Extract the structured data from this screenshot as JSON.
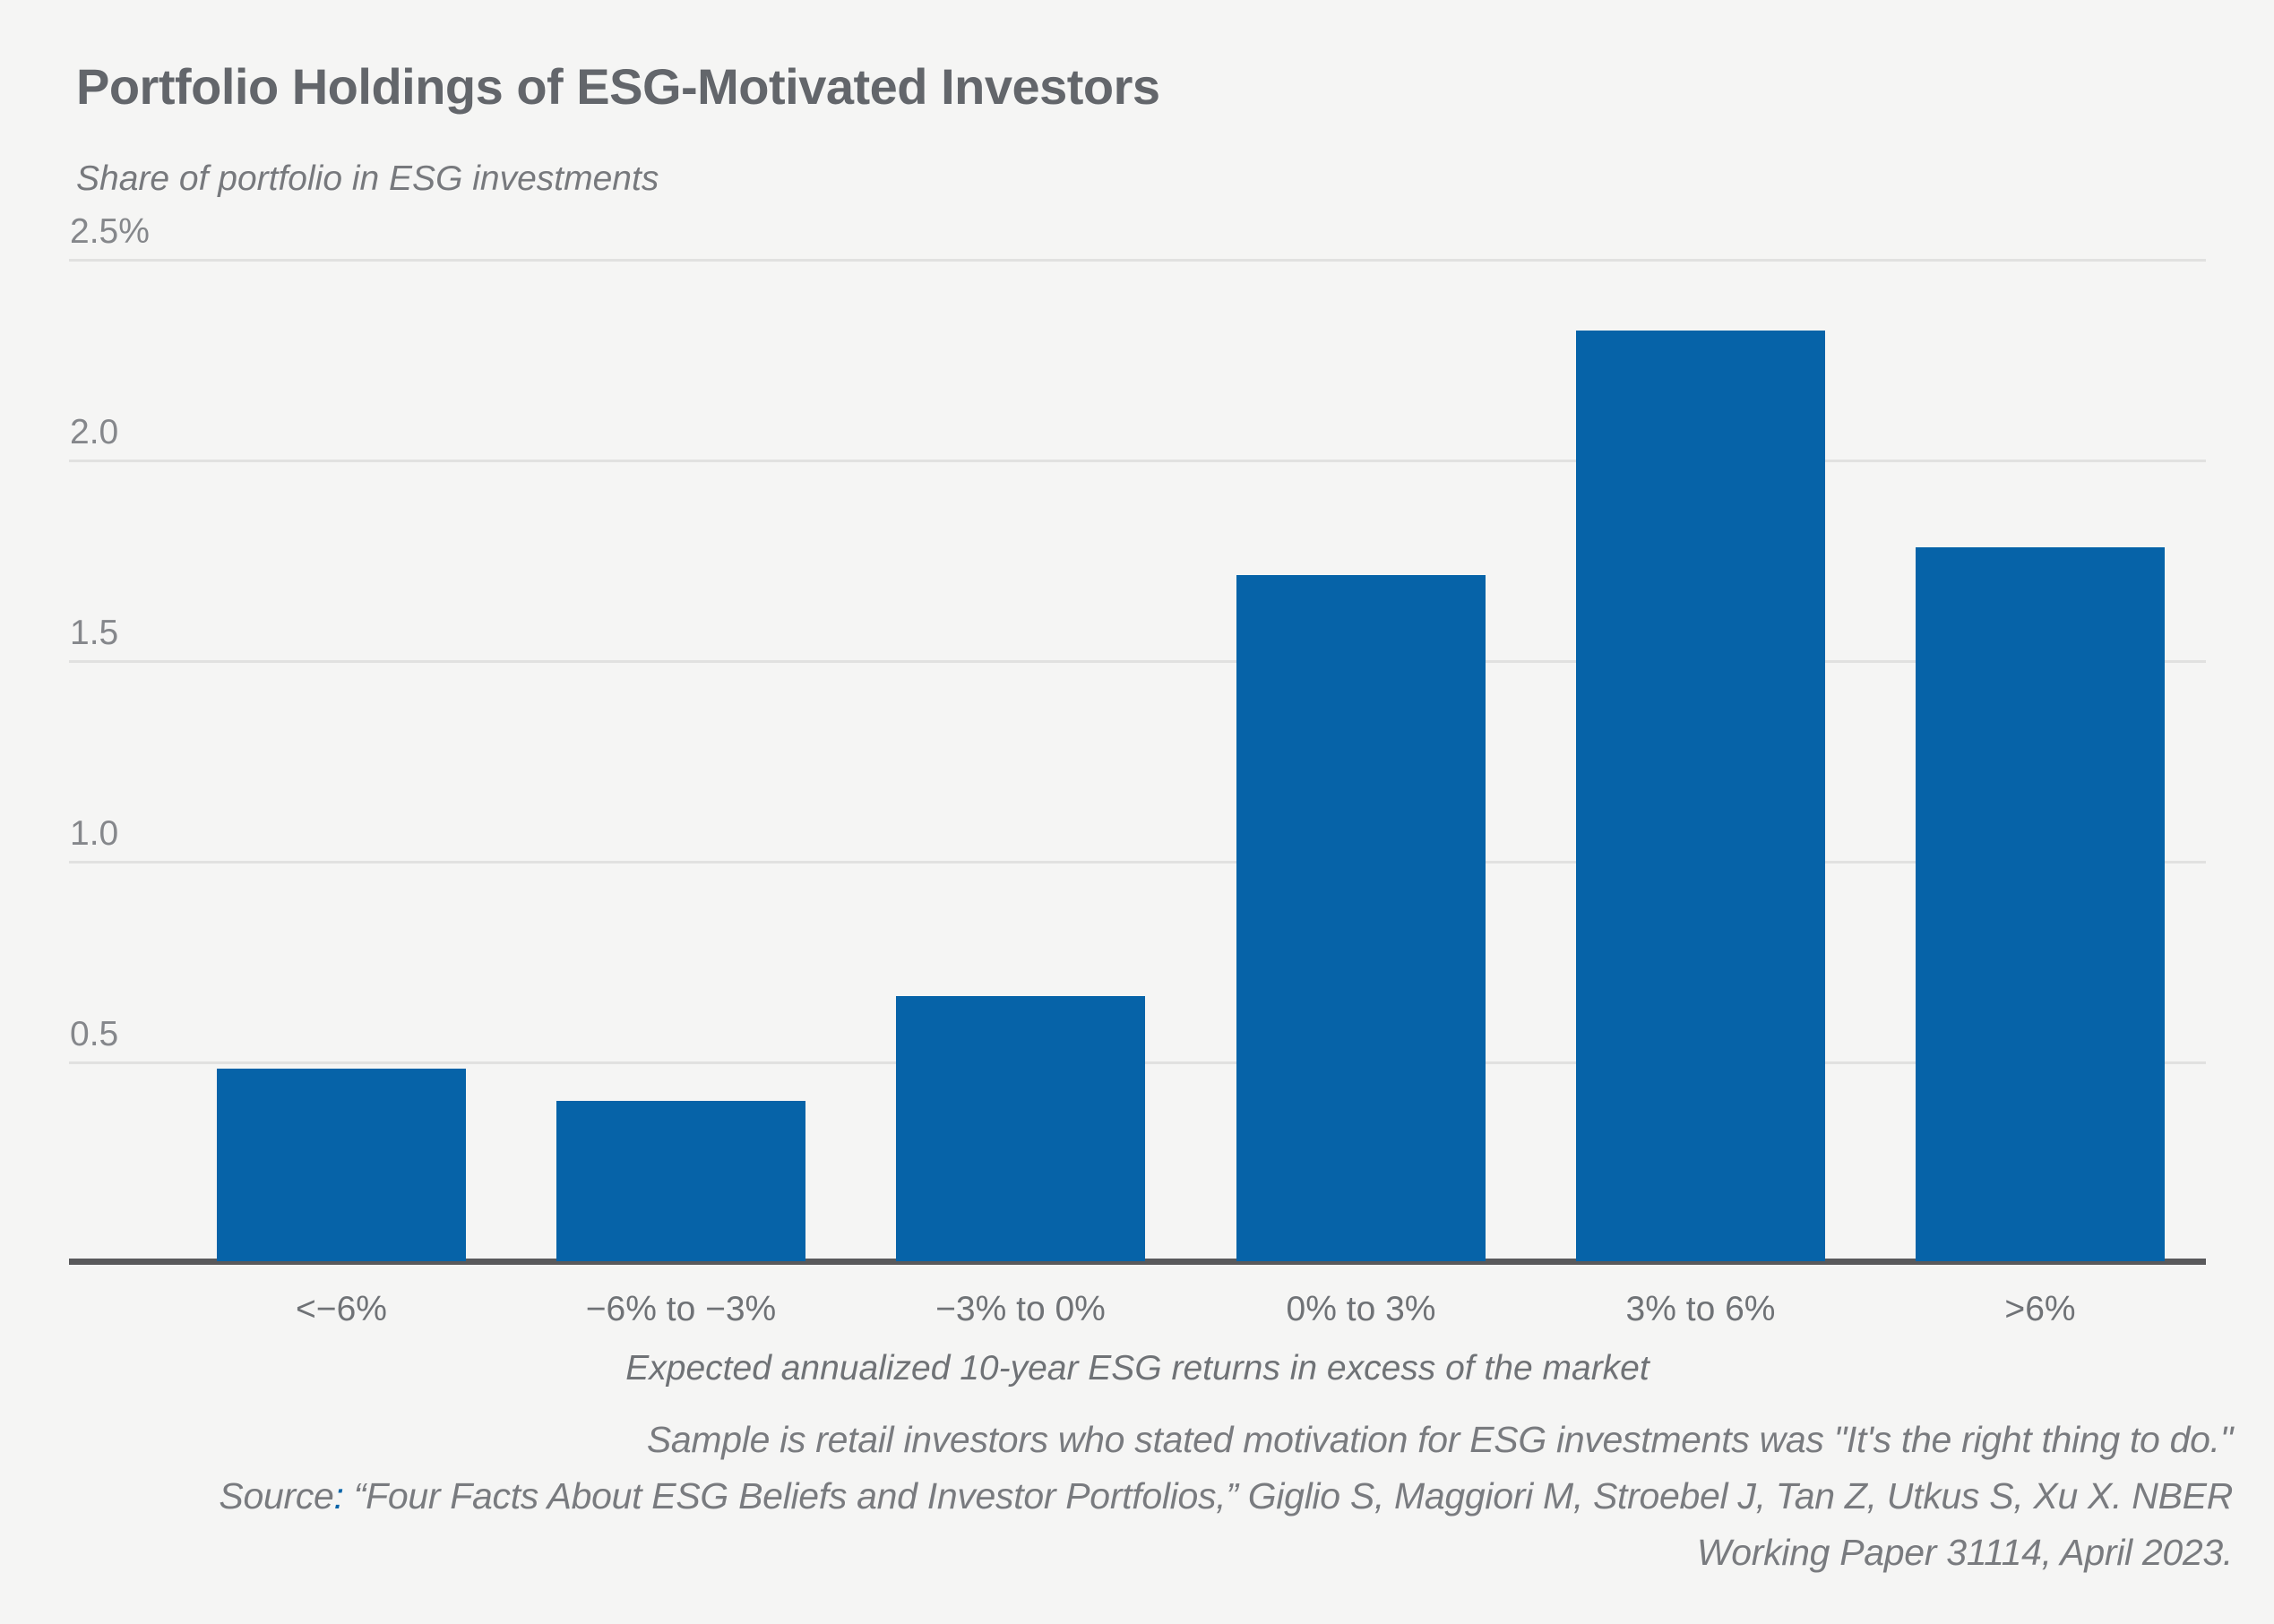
{
  "figure": {
    "title": "Portfolio Holdings of ESG-Motivated Investors",
    "subtitle": "Share of portfolio in ESG investments",
    "colors": {
      "background": "#f5f5f4",
      "bar": "#0663a8",
      "axis": "#59595b",
      "gridline": "#e1e1e0",
      "title_text": "#63666b",
      "muted_text": "#797b7f"
    }
  },
  "chart_data": {
    "type": "bar",
    "title": "Portfolio Holdings of ESG-Motivated Investors",
    "subtitle": "Share of portfolio in ESG investments",
    "categories": [
      "<−6%",
      "−6% to −3%",
      "−3% to 0%",
      "0% to 3%",
      "3% to 6%",
      ">6%"
    ],
    "values": [
      0.48,
      0.4,
      0.66,
      1.71,
      2.32,
      1.78
    ],
    "xlabel": "Expected annualized 10-year ESG returns in excess of the market",
    "ylabel": "Share of portfolio in ESG investments",
    "ylim": [
      0,
      2.5
    ],
    "yticks": [
      {
        "value": 2.5,
        "label": "2.5%"
      },
      {
        "value": 2.0,
        "label": "2.0"
      },
      {
        "value": 1.5,
        "label": "1.5"
      },
      {
        "value": 1.0,
        "label": "1.0"
      },
      {
        "value": 0.5,
        "label": "0.5"
      }
    ],
    "grid": "horizontal",
    "legend": "none",
    "bar_color": "#0663a8"
  },
  "notes": {
    "sample_line": "Sample is retail investors who stated motivation for ESG investments was \"It's the right thing to do.\"",
    "source_label": "Source",
    "source_colon": ":",
    "source_line": " “Four Facts About ESG Beliefs and Investor Portfolios,” Giglio S, Maggiori M, Stroebel J, Tan Z, Utkus S, Xu X. NBER",
    "source_line2": "Working Paper 31114, April 2023."
  }
}
